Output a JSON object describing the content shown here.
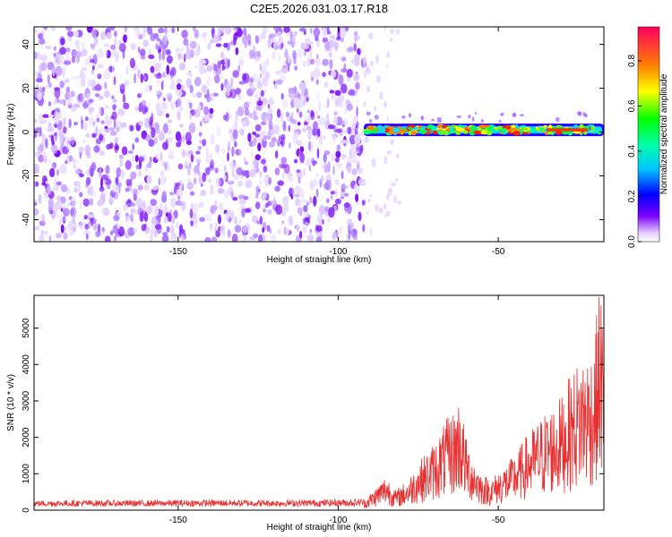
{
  "title": "C2E5.2026.031.03.17.R18",
  "chart_data": [
    {
      "type": "heatmap",
      "name": "spectrogram",
      "xlabel": "Height of straight line (km)",
      "ylabel": "Frequency (Hz)",
      "xlim": [
        -195,
        -17
      ],
      "ylim": [
        -50,
        48
      ],
      "xticks": [
        "-150",
        "-100",
        "-50"
      ],
      "yticks": [
        "-40",
        "-20",
        "0",
        "20",
        "40"
      ],
      "colorbar": {
        "label": "Normalized spectral amplitude",
        "range": [
          0,
          0.95
        ],
        "ticks": [
          "0.0",
          "0.2",
          "0.4",
          "0.6",
          "0.8"
        ]
      },
      "signal_band": {
        "x_start": -92,
        "x_end": -17,
        "center_hz": 1,
        "description_values": {
          "noise_region_end_km": -92
        }
      }
    },
    {
      "type": "line",
      "name": "snr",
      "xlabel": "Height of straight line (km)",
      "ylabel": "SNR (10 * v/v)",
      "xlim": [
        -195,
        -17
      ],
      "ylim": [
        0,
        5900
      ],
      "xticks": [
        "-150",
        "-100",
        "-50"
      ],
      "yticks": [
        "0",
        "1000",
        "2000",
        "3000",
        "4000",
        "5000"
      ],
      "series": [
        {
          "name": "SNR",
          "color": "#e83030",
          "x": [
            -195,
            -180,
            -160,
            -140,
            -120,
            -100,
            -92,
            -88,
            -85,
            -82,
            -78,
            -75,
            -72,
            -70,
            -68,
            -66,
            -64,
            -62,
            -60,
            -58,
            -55,
            -52,
            -50,
            -47,
            -44,
            -41,
            -38,
            -35,
            -32,
            -30,
            -28,
            -26,
            -24,
            -22,
            -20,
            -19,
            -18,
            -17
          ],
          "values": [
            180,
            200,
            190,
            210,
            200,
            220,
            250,
            600,
            900,
            500,
            800,
            1200,
            1500,
            1700,
            2000,
            2300,
            2500,
            2900,
            1800,
            1400,
            900,
            800,
            1000,
            1200,
            1500,
            1900,
            2200,
            2500,
            2700,
            2900,
            3300,
            3600,
            3900,
            4000,
            4100,
            5200,
            5800,
            4200
          ]
        }
      ]
    }
  ]
}
